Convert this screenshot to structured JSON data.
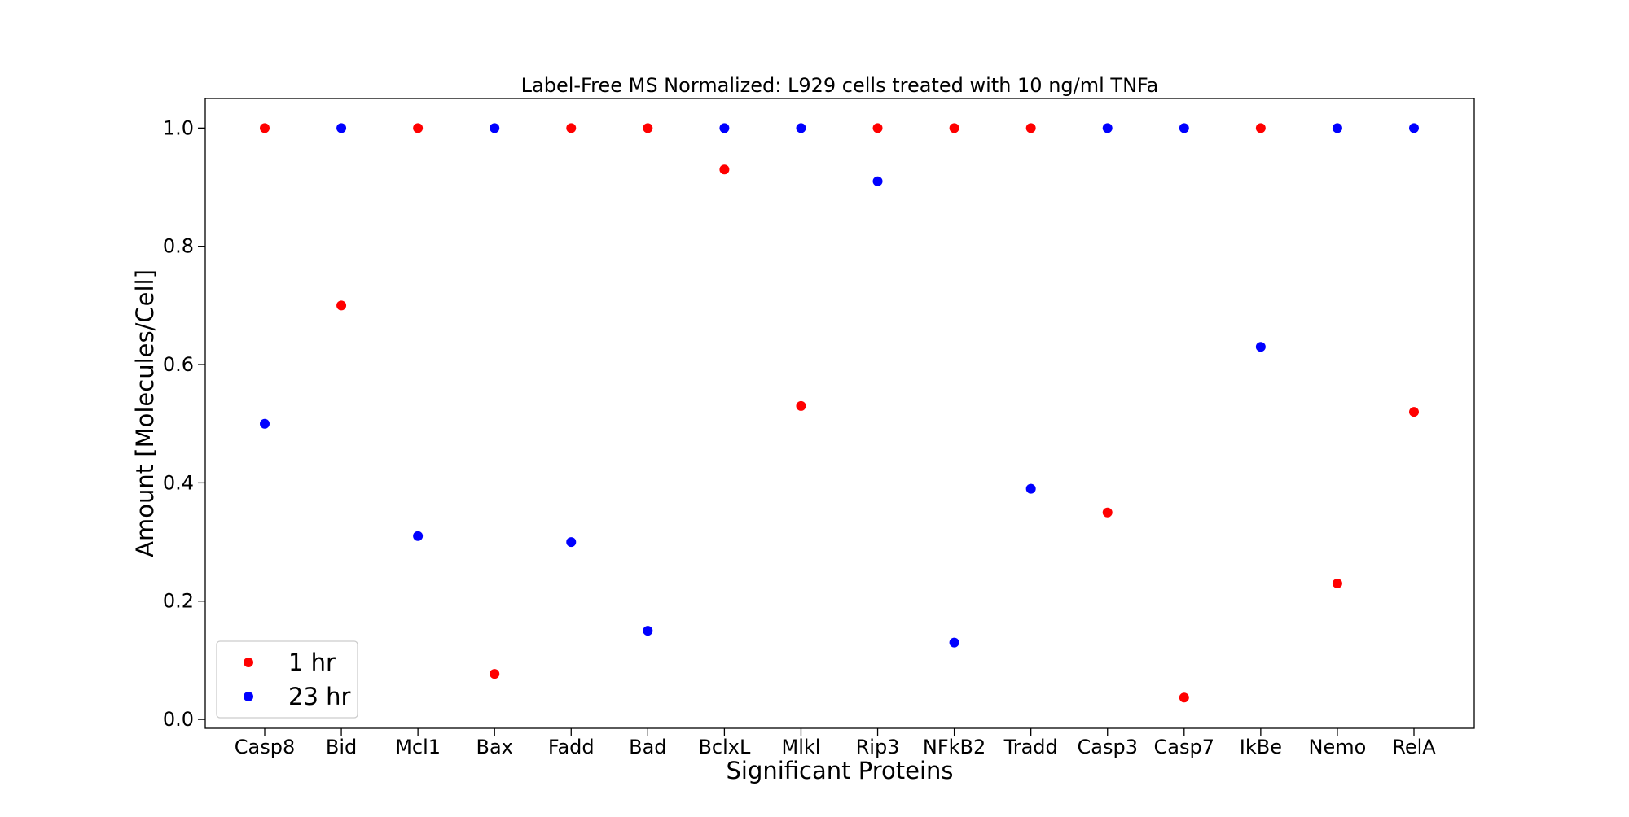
{
  "chart_data": {
    "type": "scatter",
    "title": "Label-Free MS Normalized: L929 cells treated with 10 ng/ml TNFa",
    "xlabel": "Significant Proteins",
    "ylabel": "Amount [Molecules/Cell]",
    "ylim": [
      -0.015,
      1.05
    ],
    "yticks": [
      "0.0",
      "0.2",
      "0.4",
      "0.6",
      "0.8",
      "1.0"
    ],
    "ytick_values": [
      0.0,
      0.2,
      0.4,
      0.6,
      0.8,
      1.0
    ],
    "grid": false,
    "legend_position": "lower-left",
    "categories": [
      "Casp8",
      "Bid",
      "Mcl1",
      "Bax",
      "Fadd",
      "Bad",
      "BclxL",
      "Mlkl",
      "Rip3",
      "NFkB2",
      "Tradd",
      "Casp3",
      "Casp7",
      "IkBe",
      "Nemo",
      "RelA"
    ],
    "series": [
      {
        "name": "1 hr",
        "color": "#ff0000",
        "values": [
          1.0,
          0.7,
          1.0,
          0.077,
          1.0,
          1.0,
          0.93,
          0.53,
          1.0,
          1.0,
          1.0,
          0.35,
          0.037,
          1.0,
          0.23,
          0.52
        ]
      },
      {
        "name": "23 hr",
        "color": "#0000ff",
        "values": [
          0.5,
          1.0,
          0.31,
          1.0,
          0.3,
          0.15,
          1.0,
          1.0,
          0.91,
          0.13,
          0.39,
          1.0,
          1.0,
          0.63,
          1.0,
          1.0
        ]
      }
    ]
  }
}
